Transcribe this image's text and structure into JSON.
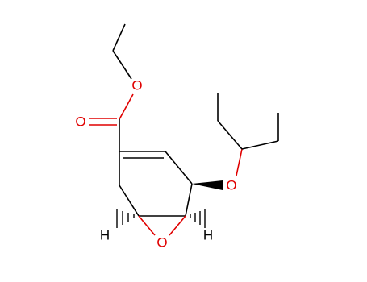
{
  "atoms": [
    {
      "label": "O"
    },
    {
      "label": "O"
    },
    {
      "label": "O"
    },
    {
      "label": "O"
    },
    {
      "label": "H"
    },
    {
      "label": "H"
    }
  ]
}
